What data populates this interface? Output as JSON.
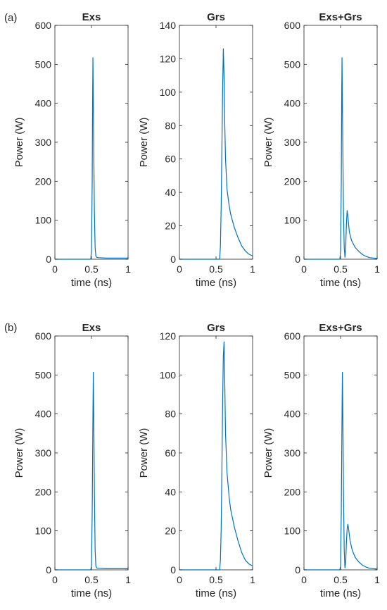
{
  "panel_labels": [
    "(a)",
    "(b)"
  ],
  "chart_data": [
    {
      "type": "line",
      "row": 0,
      "col": 0,
      "title": "Exs",
      "xlabel": "time (ns)",
      "ylabel": "Power (W)",
      "xlim": [
        0,
        1
      ],
      "ylim": [
        0,
        600
      ],
      "xticks": [
        0,
        0.5,
        1
      ],
      "yticks": [
        0,
        100,
        200,
        300,
        400,
        500,
        600
      ],
      "color": "#0072BD",
      "grid": false,
      "x": [
        0,
        0.49,
        0.5,
        0.51,
        0.515,
        0.52,
        0.53,
        0.54,
        0.55,
        0.56,
        0.57,
        0.6,
        0.7,
        0.8,
        0.9,
        1
      ],
      "y": [
        0,
        0,
        20,
        200,
        400,
        517,
        300,
        120,
        30,
        8,
        5,
        4,
        3,
        3,
        3,
        3
      ]
    },
    {
      "type": "line",
      "row": 0,
      "col": 1,
      "title": "Grs",
      "xlabel": "time (ns)",
      "ylabel": "Power (W)",
      "xlim": [
        0,
        1
      ],
      "ylim": [
        0,
        140
      ],
      "xticks": [
        0,
        0.5,
        1
      ],
      "yticks": [
        0,
        20,
        40,
        60,
        80,
        100,
        120,
        140
      ],
      "color": "#0072BD",
      "grid": false,
      "x": [
        0,
        0.55,
        0.56,
        0.57,
        0.58,
        0.59,
        0.6,
        0.61,
        0.62,
        0.63,
        0.65,
        0.68,
        0.7,
        0.75,
        0.8,
        0.85,
        0.9,
        0.95,
        1
      ],
      "y": [
        0,
        0,
        8,
        30,
        65,
        100,
        126,
        110,
        80,
        60,
        42,
        32,
        27,
        19,
        13,
        8,
        5,
        3,
        2
      ]
    },
    {
      "type": "line",
      "row": 0,
      "col": 2,
      "title": "Exs+Grs",
      "xlabel": "time (ns)",
      "ylabel": "Power (W)",
      "xlim": [
        0,
        1
      ],
      "ylim": [
        0,
        600
      ],
      "xticks": [
        0,
        0.5,
        1
      ],
      "yticks": [
        0,
        100,
        200,
        300,
        400,
        500,
        600
      ],
      "color": "#0072BD",
      "grid": false,
      "x": [
        0,
        0.49,
        0.5,
        0.51,
        0.515,
        0.52,
        0.53,
        0.54,
        0.55,
        0.56,
        0.57,
        0.58,
        0.59,
        0.6,
        0.62,
        0.65,
        0.7,
        0.75,
        0.8,
        0.85,
        0.9,
        1
      ],
      "y": [
        0,
        0,
        20,
        200,
        400,
        517,
        300,
        120,
        30,
        5,
        30,
        90,
        125,
        110,
        70,
        48,
        30,
        20,
        12,
        7,
        4,
        2
      ]
    },
    {
      "type": "line",
      "row": 1,
      "col": 0,
      "title": "Exs",
      "xlabel": "time (ns)",
      "ylabel": "Power (W)",
      "xlim": [
        0,
        1
      ],
      "ylim": [
        0,
        600
      ],
      "xticks": [
        0,
        0.5,
        1
      ],
      "yticks": [
        0,
        100,
        200,
        300,
        400,
        500,
        600
      ],
      "color": "#0072BD",
      "grid": false,
      "x": [
        0,
        0.49,
        0.5,
        0.51,
        0.52,
        0.525,
        0.53,
        0.54,
        0.55,
        0.56,
        0.57,
        0.6,
        0.7,
        0.8,
        0.9,
        1
      ],
      "y": [
        0,
        0,
        10,
        150,
        400,
        507,
        420,
        200,
        50,
        10,
        5,
        4,
        3,
        3,
        3,
        3
      ]
    },
    {
      "type": "line",
      "row": 1,
      "col": 1,
      "title": "Grs",
      "xlabel": "time (ns)",
      "ylabel": "Power (W)",
      "xlim": [
        0,
        1
      ],
      "ylim": [
        0,
        120
      ],
      "xticks": [
        0,
        0.5,
        1
      ],
      "yticks": [
        0,
        20,
        40,
        60,
        80,
        100,
        120
      ],
      "color": "#0072BD",
      "grid": false,
      "x": [
        0,
        0.55,
        0.56,
        0.57,
        0.58,
        0.59,
        0.6,
        0.61,
        0.62,
        0.63,
        0.65,
        0.68,
        0.7,
        0.75,
        0.8,
        0.85,
        0.9,
        0.95,
        1
      ],
      "y": [
        0,
        0,
        5,
        20,
        50,
        85,
        110,
        117,
        95,
        70,
        50,
        37,
        31,
        22,
        15,
        9,
        5,
        3,
        2
      ]
    },
    {
      "type": "line",
      "row": 1,
      "col": 2,
      "title": "Exs+Grs",
      "xlabel": "time (ns)",
      "ylabel": "Power (W)",
      "xlim": [
        0,
        1
      ],
      "ylim": [
        0,
        600
      ],
      "xticks": [
        0,
        0.5,
        1
      ],
      "yticks": [
        0,
        100,
        200,
        300,
        400,
        500,
        600
      ],
      "color": "#0072BD",
      "grid": false,
      "x": [
        0,
        0.49,
        0.5,
        0.51,
        0.52,
        0.525,
        0.53,
        0.54,
        0.55,
        0.56,
        0.57,
        0.58,
        0.59,
        0.6,
        0.61,
        0.63,
        0.66,
        0.7,
        0.75,
        0.8,
        0.85,
        0.9,
        1
      ],
      "y": [
        0,
        0,
        10,
        150,
        400,
        507,
        420,
        200,
        50,
        5,
        20,
        70,
        105,
        117,
        105,
        75,
        50,
        32,
        20,
        12,
        7,
        4,
        2
      ]
    }
  ]
}
